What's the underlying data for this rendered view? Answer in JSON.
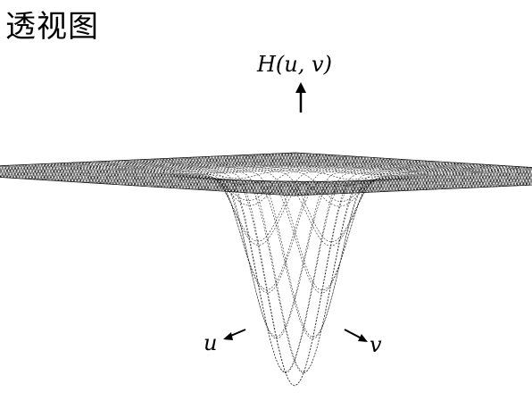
{
  "title": "透视图",
  "axis_labels": {
    "z": "H(u, v)",
    "u": "u",
    "v": "v"
  },
  "colors": {
    "line": "#1a1a1a",
    "background": "#ffffff"
  }
}
